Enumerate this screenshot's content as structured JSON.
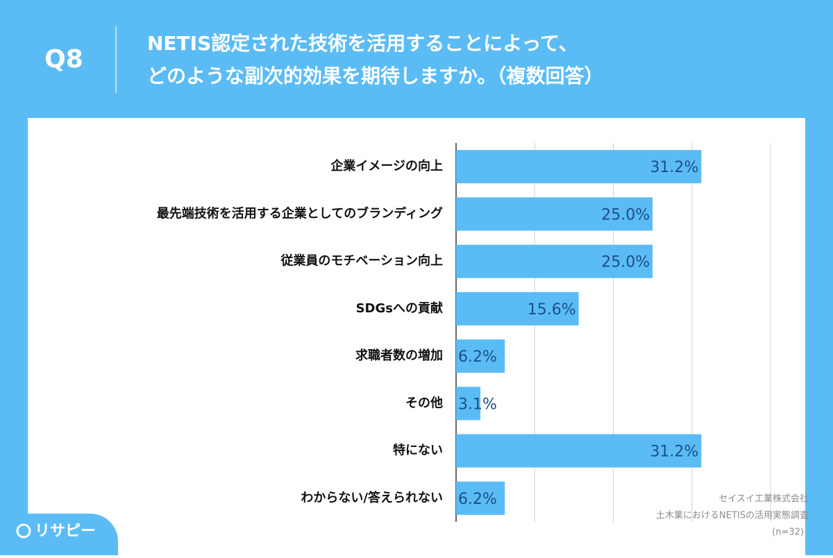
{
  "chart_data": {
    "type": "barh",
    "question_label": "Q8",
    "title_lines": [
      "NETIS認定された技術を活用することによって、",
      "どのような副次的効果を期待しますか。（複数回答）"
    ],
    "categories": [
      "企業イメージの向上",
      "最先端技術を活用する企業としてのブランディング",
      "従業員のモチベーション向上",
      "SDGsへの貢献",
      "求職者数の増加",
      "その他",
      "特にない",
      "わからない/答えられない"
    ],
    "values": [
      31.2,
      25.0,
      25.0,
      15.6,
      6.2,
      3.1,
      31.2,
      6.2
    ],
    "value_labels": [
      "31.2%",
      "25.0%",
      "25.0%",
      "15.6%",
      "6.2%",
      "3.1%",
      "31.2%",
      "6.2%"
    ],
    "color": "#5bbcf5",
    "xlim": [
      0,
      40
    ],
    "xticks": [
      0,
      10,
      20,
      30,
      40
    ],
    "grid": true,
    "source": [
      "セイスイ工業株式会社",
      "土木業におけるNETISの活用実態調査",
      "(n=32)"
    ],
    "logo": "リサピー"
  }
}
